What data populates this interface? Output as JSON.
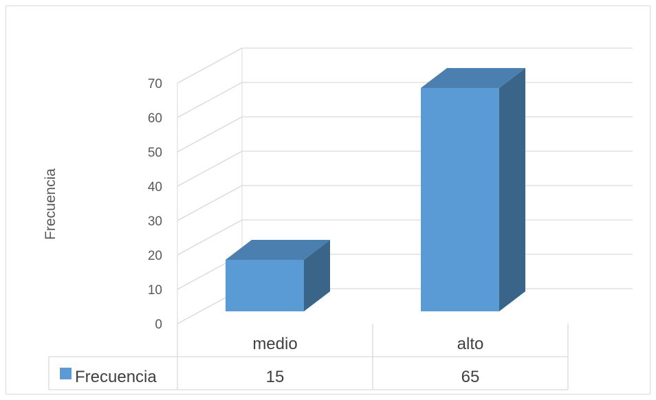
{
  "chart_data": {
    "type": "bar",
    "style": "3d-column",
    "categories": [
      "medio",
      "alto"
    ],
    "series": [
      {
        "name": "Frecuencia",
        "values": [
          15,
          65
        ]
      }
    ],
    "ylabel": "Frecuencia",
    "ylim": [
      0,
      70
    ],
    "yticks": [
      0,
      10,
      20,
      30,
      40,
      50,
      60,
      70
    ],
    "grid": true,
    "data_table": true,
    "colors": {
      "bar_front": "#5b9bd5",
      "bar_top": "#4a7fb0",
      "bar_side": "#3a6589",
      "grid": "#d9d9d9",
      "text": "#595959",
      "table_text": "#404040"
    }
  }
}
